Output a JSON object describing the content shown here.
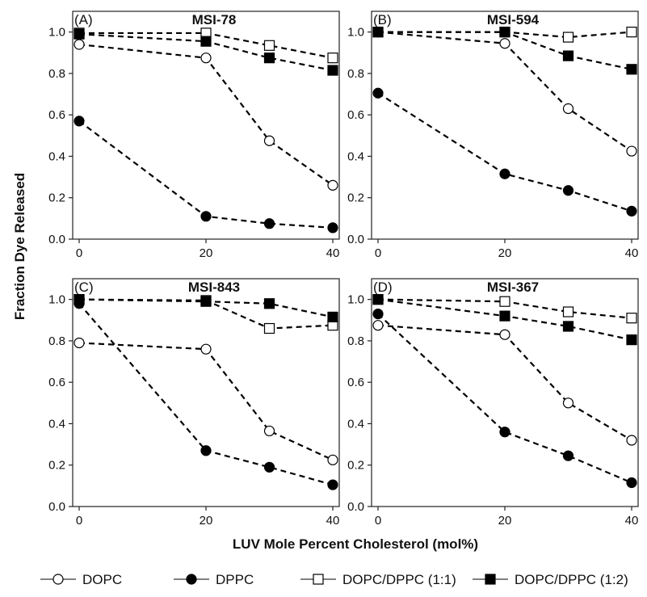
{
  "chart_data": {
    "type": "line",
    "ylabel": "Fraction Dye Released",
    "xlabel": "LUV Mole Percent Cholesterol (mol%)",
    "xlim": [
      0,
      40
    ],
    "ylim": [
      0.0,
      1.1
    ],
    "x_ticks": [
      0,
      20,
      40
    ],
    "y_ticks": [
      "0.0",
      "0.2",
      "0.4",
      "0.6",
      "0.8",
      "1.0"
    ],
    "grid": false,
    "legend_position": "bottom",
    "legend": [
      {
        "name": "DOPC",
        "marker": "open-circle",
        "color": "#000000"
      },
      {
        "name": "DPPC",
        "marker": "filled-circle",
        "color": "#000000"
      },
      {
        "name": "DOPC/DPPC (1:1)",
        "marker": "open-square",
        "color": "#000000"
      },
      {
        "name": "DOPC/DPPC (1:2)",
        "marker": "filled-square",
        "color": "#000000"
      }
    ],
    "panels": [
      {
        "letter": "(A)",
        "title": "MSI-78",
        "x": [
          0,
          20,
          30,
          40
        ],
        "series": [
          {
            "name": "DOPC",
            "values": [
              0.94,
              0.875,
              0.475,
              0.26
            ]
          },
          {
            "name": "DPPC",
            "values": [
              0.57,
              0.11,
              0.075,
              0.055
            ]
          },
          {
            "name": "DOPC/DPPC (1:1)",
            "values": [
              0.995,
              0.995,
              0.935,
              0.875
            ]
          },
          {
            "name": "DOPC/DPPC (1:2)",
            "values": [
              0.99,
              0.955,
              0.875,
              0.815
            ]
          }
        ]
      },
      {
        "letter": "(B)",
        "title": "MSI-594",
        "x": [
          0,
          20,
          30,
          40
        ],
        "series": [
          {
            "name": "DOPC",
            "values": [
              1.0,
              0.945,
              0.63,
              0.425
            ]
          },
          {
            "name": "DPPC",
            "values": [
              0.705,
              0.315,
              0.235,
              0.135
            ]
          },
          {
            "name": "DOPC/DPPC (1:1)",
            "values": [
              1.0,
              1.0,
              0.975,
              1.0
            ]
          },
          {
            "name": "DOPC/DPPC (1:2)",
            "values": [
              1.0,
              1.0,
              0.885,
              0.82
            ]
          }
        ]
      },
      {
        "letter": "(C)",
        "title": "MSI-843",
        "x": [
          0,
          20,
          30,
          40
        ],
        "series": [
          {
            "name": "DOPC",
            "values": [
              0.79,
              0.76,
              0.365,
              0.225
            ]
          },
          {
            "name": "DPPC",
            "values": [
              0.98,
              0.27,
              0.19,
              0.105
            ]
          },
          {
            "name": "DOPC/DPPC (1:1)",
            "values": [
              1.0,
              0.995,
              0.86,
              0.875
            ]
          },
          {
            "name": "DOPC/DPPC (1:2)",
            "values": [
              1.0,
              0.99,
              0.98,
              0.915
            ]
          }
        ]
      },
      {
        "letter": "(D)",
        "title": "MSI-367",
        "x": [
          0,
          20,
          30,
          40
        ],
        "series": [
          {
            "name": "DOPC",
            "values": [
              0.875,
              0.83,
              0.5,
              0.32
            ]
          },
          {
            "name": "DPPC",
            "values": [
              0.93,
              0.36,
              0.245,
              0.115
            ]
          },
          {
            "name": "DOPC/DPPC (1:1)",
            "values": [
              1.0,
              0.99,
              0.94,
              0.91
            ]
          },
          {
            "name": "DOPC/DPPC (1:2)",
            "values": [
              1.0,
              0.92,
              0.87,
              0.805
            ]
          }
        ]
      }
    ]
  }
}
